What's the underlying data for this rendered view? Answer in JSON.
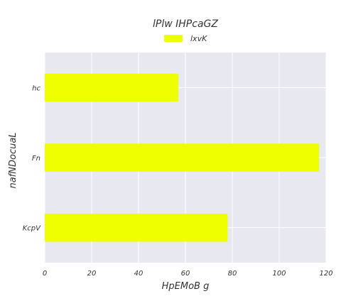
{
  "chart_data": {
    "type": "bar",
    "orientation": "horizontal",
    "title": "lPlw IHPcaGZ",
    "xlabel": "HpEMoB g",
    "ylabel": "nafNDocuaL",
    "categories": [
      "KcpV",
      "Fn",
      "hc"
    ],
    "series": [
      {
        "name": "lxvK",
        "values": [
          78,
          117,
          57
        ],
        "color": "#eeff00"
      }
    ],
    "xlim": [
      0,
      120
    ],
    "xticks": [
      "0",
      "20",
      "40",
      "60",
      "80",
      "100",
      "120"
    ],
    "grid": true,
    "legend_position": "top-center",
    "background": "#e8e8f0"
  }
}
